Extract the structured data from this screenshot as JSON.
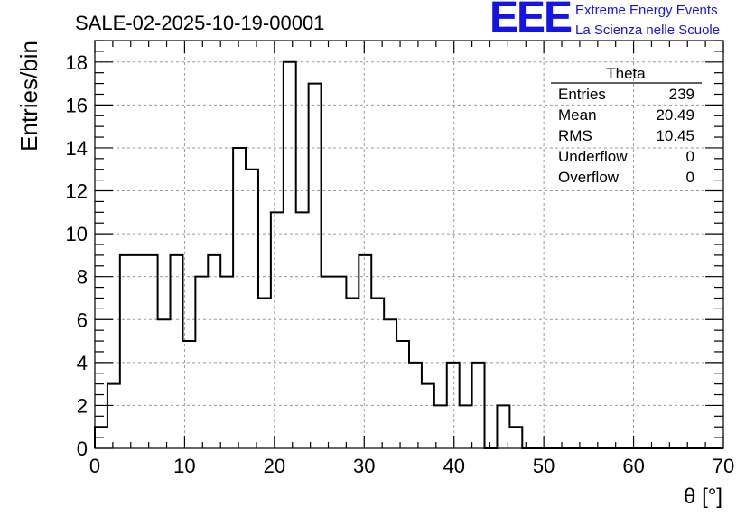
{
  "title": "SALE-02-2025-10-19-00001",
  "logo": {
    "mark": "EEE",
    "line1": "Extreme Energy Events",
    "line2": "La Scienza nelle Scuole",
    "color": "#1414e6"
  },
  "stats": {
    "name": "Theta",
    "rows": [
      {
        "label": "Entries",
        "value": "239"
      },
      {
        "label": "Mean",
        "value": "20.49"
      },
      {
        "label": "RMS",
        "value": "10.45"
      },
      {
        "label": "Underflow",
        "value": "0"
      },
      {
        "label": "Overflow",
        "value": "0"
      }
    ]
  },
  "chart_data": {
    "type": "bar",
    "style": "step-histogram",
    "xlabel": "θ [°]",
    "ylabel": "Entries/bin",
    "xlim": [
      0,
      70
    ],
    "ylim": [
      0,
      19
    ],
    "grid": true,
    "bin_width": 1.4,
    "bin_start": 0,
    "values": [
      1,
      3,
      9,
      9,
      9,
      6,
      9,
      5,
      8,
      9,
      8,
      14,
      13,
      7,
      11,
      18,
      11,
      17,
      8,
      8,
      7,
      9,
      7,
      6,
      5,
      4,
      3,
      2,
      4,
      2,
      4,
      0,
      2,
      1,
      0,
      0,
      0,
      0,
      0,
      0,
      0,
      0,
      0,
      0,
      0,
      0,
      0,
      0,
      0,
      0
    ],
    "x_ticks": [
      "0",
      "10",
      "20",
      "30",
      "40",
      "50",
      "60",
      "70"
    ],
    "y_ticks": [
      "0",
      "2",
      "4",
      "6",
      "8",
      "10",
      "12",
      "14",
      "16",
      "18"
    ]
  }
}
